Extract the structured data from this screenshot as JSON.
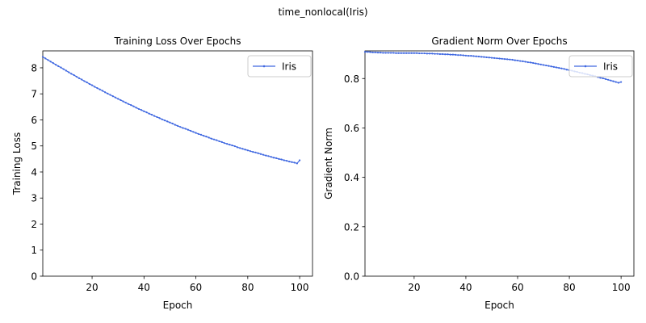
{
  "figure": {
    "suptitle": "time_nonlocal(Iris)"
  },
  "chart_data": [
    {
      "type": "line",
      "title": "Training Loss Over Epochs",
      "xlabel": "Epoch",
      "ylabel": "Training Loss",
      "xlim": [
        1,
        104.95
      ],
      "ylim": [
        0,
        8.65
      ],
      "xticks": [
        20,
        40,
        60,
        80,
        100
      ],
      "yticks": [
        0,
        1,
        2,
        3,
        4,
        5,
        6,
        7,
        8
      ],
      "grid": false,
      "legend": "upper right",
      "series": [
        {
          "name": "Iris",
          "color": "#4169e1",
          "x": [
            1,
            2,
            3,
            4,
            5,
            6,
            7,
            8,
            9,
            10,
            11,
            12,
            13,
            14,
            15,
            16,
            17,
            18,
            19,
            20,
            21,
            22,
            23,
            24,
            25,
            26,
            27,
            28,
            29,
            30,
            31,
            32,
            33,
            34,
            35,
            36,
            37,
            38,
            39,
            40,
            41,
            42,
            43,
            44,
            45,
            46,
            47,
            48,
            49,
            50,
            51,
            52,
            53,
            54,
            55,
            56,
            57,
            58,
            59,
            60,
            61,
            62,
            63,
            64,
            65,
            66,
            67,
            68,
            69,
            70,
            71,
            72,
            73,
            74,
            75,
            76,
            77,
            78,
            79,
            80,
            81,
            82,
            83,
            84,
            85,
            86,
            87,
            88,
            89,
            90,
            91,
            92,
            93,
            94,
            95,
            96,
            97,
            98,
            99,
            100
          ],
          "y": [
            8.42,
            8.36,
            8.3,
            8.24,
            8.18,
            8.12,
            8.06,
            8.01,
            7.95,
            7.89,
            7.83,
            7.77,
            7.72,
            7.66,
            7.6,
            7.55,
            7.49,
            7.44,
            7.38,
            7.33,
            7.27,
            7.22,
            7.17,
            7.12,
            7.06,
            7.01,
            6.96,
            6.91,
            6.86,
            6.81,
            6.76,
            6.71,
            6.66,
            6.61,
            6.57,
            6.52,
            6.47,
            6.42,
            6.38,
            6.33,
            6.29,
            6.24,
            6.2,
            6.15,
            6.11,
            6.07,
            6.02,
            5.98,
            5.94,
            5.9,
            5.86,
            5.81,
            5.77,
            5.73,
            5.69,
            5.66,
            5.62,
            5.58,
            5.54,
            5.5,
            5.46,
            5.43,
            5.39,
            5.36,
            5.32,
            5.28,
            5.25,
            5.22,
            5.18,
            5.15,
            5.11,
            5.08,
            5.05,
            5.02,
            4.99,
            4.95,
            4.92,
            4.89,
            4.86,
            4.83,
            4.8,
            4.77,
            4.75,
            4.72,
            4.69,
            4.66,
            4.63,
            4.61,
            4.58,
            4.55,
            4.53,
            4.5,
            4.48,
            4.45,
            4.43,
            4.4,
            4.38,
            4.36,
            4.33,
            4.45
          ]
        }
      ]
    },
    {
      "type": "line",
      "title": "Gradient Norm Over Epochs",
      "xlabel": "Epoch",
      "ylabel": "Gradient Norm",
      "xlim": [
        1,
        104.95
      ],
      "ylim": [
        0,
        0.912
      ],
      "xticks": [
        20,
        40,
        60,
        80,
        100
      ],
      "yticks": [
        0.0,
        0.2,
        0.4,
        0.6,
        0.8
      ],
      "ytick_format": 1,
      "grid": false,
      "legend": "upper right",
      "series": [
        {
          "name": "Iris",
          "color": "#4169e1",
          "x": [
            1,
            2,
            3,
            4,
            5,
            6,
            7,
            8,
            9,
            10,
            11,
            12,
            13,
            14,
            15,
            16,
            17,
            18,
            19,
            20,
            21,
            22,
            23,
            24,
            25,
            26,
            27,
            28,
            29,
            30,
            31,
            32,
            33,
            34,
            35,
            36,
            37,
            38,
            39,
            40,
            41,
            42,
            43,
            44,
            45,
            46,
            47,
            48,
            49,
            50,
            51,
            52,
            53,
            54,
            55,
            56,
            57,
            58,
            59,
            60,
            61,
            62,
            63,
            64,
            65,
            66,
            67,
            68,
            69,
            70,
            71,
            72,
            73,
            74,
            75,
            76,
            77,
            78,
            79,
            80,
            81,
            82,
            83,
            84,
            85,
            86,
            87,
            88,
            89,
            90,
            91,
            92,
            93,
            94,
            95,
            96,
            97,
            98,
            99,
            100
          ],
          "y": [
            0.908,
            0.908,
            0.907,
            0.906,
            0.906,
            0.905,
            0.905,
            0.904,
            0.904,
            0.904,
            0.904,
            0.904,
            0.903,
            0.903,
            0.903,
            0.903,
            0.903,
            0.903,
            0.903,
            0.903,
            0.903,
            0.902,
            0.902,
            0.902,
            0.901,
            0.901,
            0.901,
            0.9,
            0.9,
            0.899,
            0.899,
            0.898,
            0.898,
            0.897,
            0.897,
            0.896,
            0.895,
            0.895,
            0.894,
            0.893,
            0.892,
            0.892,
            0.891,
            0.89,
            0.889,
            0.888,
            0.887,
            0.886,
            0.885,
            0.884,
            0.883,
            0.882,
            0.881,
            0.88,
            0.879,
            0.878,
            0.877,
            0.876,
            0.874,
            0.873,
            0.871,
            0.87,
            0.868,
            0.866,
            0.865,
            0.863,
            0.861,
            0.859,
            0.857,
            0.855,
            0.853,
            0.851,
            0.849,
            0.847,
            0.845,
            0.843,
            0.841,
            0.839,
            0.836,
            0.834,
            0.832,
            0.829,
            0.827,
            0.824,
            0.822,
            0.819,
            0.817,
            0.814,
            0.812,
            0.809,
            0.806,
            0.803,
            0.801,
            0.798,
            0.795,
            0.792,
            0.789,
            0.786,
            0.783,
            0.786
          ]
        }
      ]
    }
  ]
}
